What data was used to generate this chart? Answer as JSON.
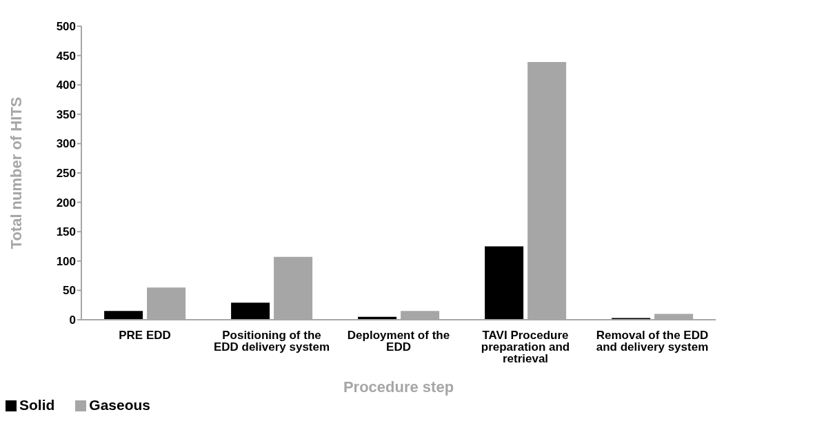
{
  "chart_data": {
    "type": "bar",
    "xlabel": "Procedure step",
    "ylabel": "Total number of HITS",
    "categories": [
      "PRE EDD",
      "Positioning of the EDD delivery system",
      "Deployment of the EDD",
      "TAVI Procedure preparation and retrieval",
      "Removal of the EDD and delivery system"
    ],
    "series": [
      {
        "name": "Solid",
        "color": "#000000",
        "values": [
          15,
          29,
          5,
          125,
          3
        ]
      },
      {
        "name": "Gaseous",
        "color": "#a6a6a6",
        "values": [
          55,
          107,
          15,
          439,
          10
        ]
      }
    ],
    "ylim": [
      0,
      500
    ],
    "yticks": [
      0,
      50,
      100,
      150,
      200,
      250,
      300,
      350,
      400,
      450,
      500
    ],
    "grid": false,
    "legend": "bottom left"
  }
}
